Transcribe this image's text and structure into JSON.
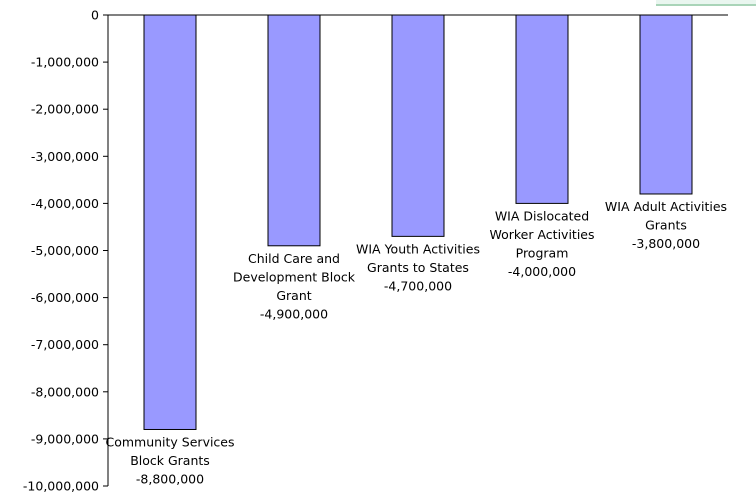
{
  "chart_data": {
    "type": "bar",
    "categories": [
      [
        "Community Services",
        "Block Grants"
      ],
      [
        "Child Care and",
        "Development Block",
        "Grant"
      ],
      [
        "WIA Youth Activities",
        "Grants to States"
      ],
      [
        "WIA Dislocated",
        "Worker Activities",
        "Program"
      ],
      [
        "WIA Adult Activities",
        "Grants"
      ]
    ],
    "values": [
      -8800000,
      -4900000,
      -4700000,
      -4000000,
      -3800000
    ],
    "value_labels": [
      "-8,800,000",
      "-4,900,000",
      "-4,700,000",
      "-4,000,000",
      "-3,800,000"
    ],
    "ylim": [
      -10000000,
      0
    ],
    "yticks": [
      0,
      -1000000,
      -2000000,
      -3000000,
      -4000000,
      -5000000,
      -6000000,
      -7000000,
      -8000000,
      -9000000,
      -10000000
    ],
    "ytick_labels": [
      "0",
      "-1,000,000",
      "-2,000,000",
      "-3,000,000",
      "-4,000,000",
      "-5,000,000",
      "-6,000,000",
      "-7,000,000",
      "-8,000,000",
      "-9,000,000",
      "-10,000,000"
    ],
    "grid": false,
    "colors": {
      "bar_fill": "#9999ff",
      "bar_stroke": "#000000",
      "axis": "#000000"
    }
  }
}
